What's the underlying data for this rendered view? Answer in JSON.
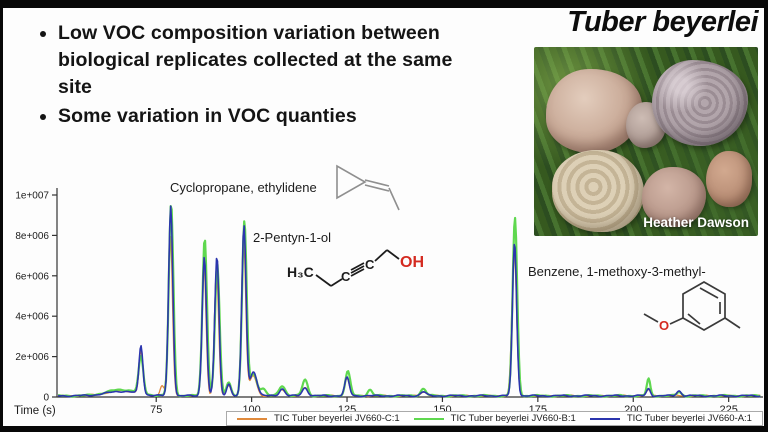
{
  "slide": {
    "title": "Tuber beyerlei",
    "bullets": [
      "Low VOC composition variation between biological replicates collected at the same site",
      "Some variation in VOC quanties"
    ],
    "photo_credit": "Heather Dawson"
  },
  "annotations": {
    "compound1_label": "Cyclopropane, ethylidene",
    "compound2_label": "2-Pentyn-1-ol",
    "compound3_label": "Benzene, 1-methoxy-3-methyl-",
    "pentynol_atoms": {
      "h3c": "H₃C",
      "c1": "C",
      "c2": "C",
      "oh": "OH"
    },
    "benzene_atoms": {
      "o": "O"
    },
    "oh_color": "#d42a20"
  },
  "chart_data": {
    "type": "line",
    "title": "",
    "xlabel": "Time (s)",
    "ylabel": "",
    "xlim": [
      49,
      234
    ],
    "ylim": [
      0,
      10000000
    ],
    "grid": false,
    "legend_position": "bottom",
    "x_ticks": [
      "75",
      "100",
      "125",
      "150",
      "175",
      "200",
      "225"
    ],
    "x_tick_values": [
      75,
      100,
      125,
      150,
      175,
      200,
      225
    ],
    "y_ticks": [
      {
        "v": 0,
        "label": "0"
      },
      {
        "v": 2000000,
        "label": "2e+006"
      },
      {
        "v": 4000000,
        "label": "4e+006"
      },
      {
        "v": 6000000,
        "label": "6e+006"
      },
      {
        "v": 8000000,
        "label": "8e+006"
      },
      {
        "v": 10000000,
        "label": "1e+007"
      }
    ],
    "axis_color": "#333333",
    "series": [
      {
        "name": "TIC Tuber beyerlei JV660-C:1",
        "color": "#E08A3C",
        "stroke_width": 1.3,
        "peaks": [
          [
            66,
            250000,
            4
          ],
          [
            71,
            2100000,
            0.5
          ],
          [
            76.5,
            500000,
            0.5
          ],
          [
            78.7,
            8000000,
            0.55
          ],
          [
            87.5,
            6500000,
            0.55
          ],
          [
            90.8,
            6200000,
            0.55
          ],
          [
            94,
            500000,
            0.6
          ],
          [
            97.9,
            7900000,
            0.55
          ],
          [
            100.4,
            1000000,
            0.9
          ],
          [
            108,
            300000,
            0.8
          ],
          [
            114,
            400000,
            0.8
          ],
          [
            125,
            900000,
            0.6
          ],
          [
            145,
            200000,
            0.8
          ],
          [
            168.8,
            7300000,
            0.6
          ],
          [
            204,
            300000,
            0.5
          ]
        ]
      },
      {
        "name": "TIC Tuber beyerlei JV660-B:1",
        "color": "#5FD84F",
        "stroke_width": 2.2,
        "peaks": [
          [
            66,
            300000,
            4
          ],
          [
            71,
            1800000,
            0.6
          ],
          [
            78.9,
            9500000,
            0.6
          ],
          [
            87.7,
            7800000,
            0.6
          ],
          [
            91,
            6500000,
            0.6
          ],
          [
            94,
            700000,
            0.6
          ],
          [
            98.1,
            8600000,
            0.6
          ],
          [
            100.5,
            1100000,
            0.9
          ],
          [
            103,
            350000,
            0.7
          ],
          [
            108,
            500000,
            0.8
          ],
          [
            114,
            800000,
            0.7
          ],
          [
            125.2,
            1200000,
            0.65
          ],
          [
            131,
            300000,
            0.6
          ],
          [
            145,
            350000,
            0.7
          ],
          [
            169,
            8800000,
            0.6
          ],
          [
            204,
            850000,
            0.45
          ],
          [
            212,
            200000,
            0.6
          ]
        ]
      },
      {
        "name": "TIC Tuber beyerlei JV660-A:1",
        "color": "#2B35AE",
        "stroke_width": 1.6,
        "peaks": [
          [
            66,
            220000,
            4
          ],
          [
            71,
            2400000,
            0.5
          ],
          [
            78.8,
            9400000,
            0.55
          ],
          [
            87.6,
            6900000,
            0.55
          ],
          [
            90.9,
            6900000,
            0.55
          ],
          [
            94,
            600000,
            0.55
          ],
          [
            98,
            8400000,
            0.55
          ],
          [
            100.5,
            1200000,
            0.9
          ],
          [
            108,
            350000,
            0.7
          ],
          [
            114,
            400000,
            0.7
          ],
          [
            125,
            900000,
            0.6
          ],
          [
            145,
            200000,
            0.7
          ],
          [
            168.9,
            7600000,
            0.55
          ],
          [
            204,
            350000,
            0.5
          ],
          [
            212,
            250000,
            0.6
          ]
        ]
      }
    ]
  }
}
